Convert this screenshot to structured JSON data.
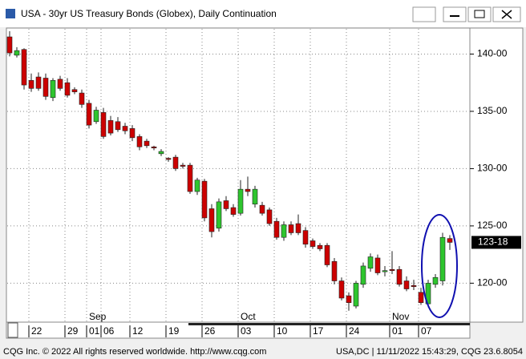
{
  "chart_data": {
    "type": "candlestick",
    "title": "USA - 30yr US Treasury Bonds (Globex), Daily Continuation",
    "categories": [
      null,
      null,
      null,
      "22",
      null,
      null,
      null,
      null,
      "29",
      null,
      null,
      "01",
      null,
      "06",
      null,
      null,
      null,
      "12",
      null,
      null,
      null,
      null,
      "19",
      null,
      null,
      null,
      null,
      "26",
      null,
      null,
      null,
      null,
      "03",
      null,
      null,
      null,
      null,
      "10",
      null,
      null,
      null,
      null,
      "17",
      null,
      null,
      null,
      null,
      "24",
      null,
      null,
      null,
      null,
      null,
      "01",
      null,
      null,
      null,
      "07",
      null,
      null,
      null,
      null
    ],
    "category_months": [
      null,
      null,
      null,
      null,
      null,
      null,
      null,
      null,
      null,
      null,
      null,
      "Sep",
      null,
      null,
      null,
      null,
      null,
      null,
      null,
      null,
      null,
      null,
      null,
      null,
      null,
      null,
      null,
      null,
      null,
      null,
      null,
      null,
      "Oct",
      null,
      null,
      null,
      null,
      null,
      null,
      null,
      null,
      null,
      null,
      null,
      null,
      null,
      null,
      null,
      null,
      null,
      null,
      null,
      null,
      "Nov",
      null,
      null,
      null,
      null,
      null,
      null,
      null,
      null
    ],
    "open": [
      141.5,
      139.9,
      140.4,
      137.7,
      138.0,
      137.9,
      136.2,
      137.8,
      137.5,
      136.9,
      136.6,
      135.7,
      134.1,
      134.9,
      134.2,
      134.1,
      133.7,
      133.5,
      132.8,
      132.4,
      131.9,
      131.3,
      130.9,
      131.0,
      130.3,
      130.3,
      128.0,
      128.9,
      126.5,
      124.8,
      127.2,
      126.6,
      126.1,
      128.2,
      126.9,
      126.8,
      126.4,
      125.4,
      124.0,
      125.1,
      125.2,
      124.6,
      123.7,
      123.3,
      123.3,
      121.9,
      120.2,
      118.9,
      118.0,
      119.9,
      121.3,
      122.2,
      121.0,
      121.2,
      121.2,
      120.2,
      119.8,
      119.2,
      118.2,
      119.9,
      120.2,
      123.9
    ],
    "high": [
      142.0,
      140.6,
      140.5,
      138.3,
      138.4,
      138.3,
      137.9,
      138.1,
      137.9,
      137.1,
      136.9,
      136.0,
      135.4,
      135.3,
      134.6,
      134.5,
      134.0,
      133.8,
      133.0,
      132.6,
      132.0,
      131.7,
      131.0,
      131.2,
      130.5,
      130.5,
      129.2,
      129.1,
      126.9,
      127.4,
      127.6,
      126.9,
      129.0,
      129.3,
      128.5,
      127.1,
      126.6,
      125.7,
      125.4,
      125.4,
      126.0,
      124.9,
      123.9,
      123.5,
      123.5,
      122.2,
      120.5,
      119.2,
      120.2,
      121.8,
      122.6,
      122.5,
      121.5,
      122.8,
      121.5,
      120.6,
      120.3,
      119.6,
      120.3,
      120.8,
      124.4,
      124.2
    ],
    "low": [
      139.8,
      139.7,
      136.9,
      136.7,
      136.8,
      136.0,
      135.9,
      136.8,
      136.2,
      136.5,
      135.3,
      133.5,
      133.9,
      132.6,
      132.9,
      133.2,
      133.0,
      132.4,
      131.6,
      131.8,
      131.6,
      131.1,
      130.6,
      129.8,
      130.0,
      127.8,
      127.7,
      125.4,
      124.0,
      124.5,
      126.3,
      125.8,
      125.9,
      127.6,
      126.6,
      125.9,
      125.0,
      123.8,
      123.7,
      124.2,
      124.2,
      123.1,
      123.0,
      122.8,
      121.4,
      119.9,
      118.5,
      117.6,
      117.8,
      119.6,
      121.0,
      120.7,
      120.6,
      120.8,
      119.7,
      119.3,
      119.4,
      118.1,
      117.9,
      119.6,
      119.8,
      122.9
    ],
    "close": [
      140.1,
      140.3,
      137.3,
      137.0,
      137.0,
      136.3,
      137.7,
      137.0,
      136.4,
      136.7,
      135.6,
      133.8,
      135.1,
      132.8,
      133.1,
      133.4,
      133.3,
      132.7,
      131.9,
      132.0,
      131.8,
      131.5,
      130.8,
      130.0,
      130.2,
      128.0,
      129.0,
      125.7,
      124.5,
      127.1,
      126.5,
      126.0,
      128.2,
      128.0,
      128.2,
      126.1,
      125.2,
      124.0,
      125.1,
      124.4,
      124.4,
      123.4,
      123.2,
      123.0,
      121.6,
      120.2,
      118.7,
      118.3,
      120.0,
      121.5,
      122.3,
      120.9,
      121.1,
      121.1,
      119.9,
      119.5,
      119.7,
      118.3,
      120.0,
      120.5,
      124.0,
      123.5625
    ],
    "up_color": "#2ec52e",
    "down_color": "#cc0000",
    "ylim": [
      116.6,
      142.2
    ],
    "yticks": [
      {
        "value": 120,
        "label": "120-00"
      },
      {
        "value": 125,
        "label": "125-00"
      },
      {
        "value": 130,
        "label": "130-00"
      },
      {
        "value": 135,
        "label": "135-00"
      },
      {
        "value": 140,
        "label": "140-00"
      }
    ],
    "grid": true,
    "last_price": {
      "value": 123.5625,
      "label": "123-18"
    }
  },
  "footer": {
    "left": "CQG Inc. © 2022 All rights reserved worldwide. http://www.cqg.com",
    "right": "USA,DC | 11/11/2022 15:43:29, CQG 23.6.8054"
  }
}
